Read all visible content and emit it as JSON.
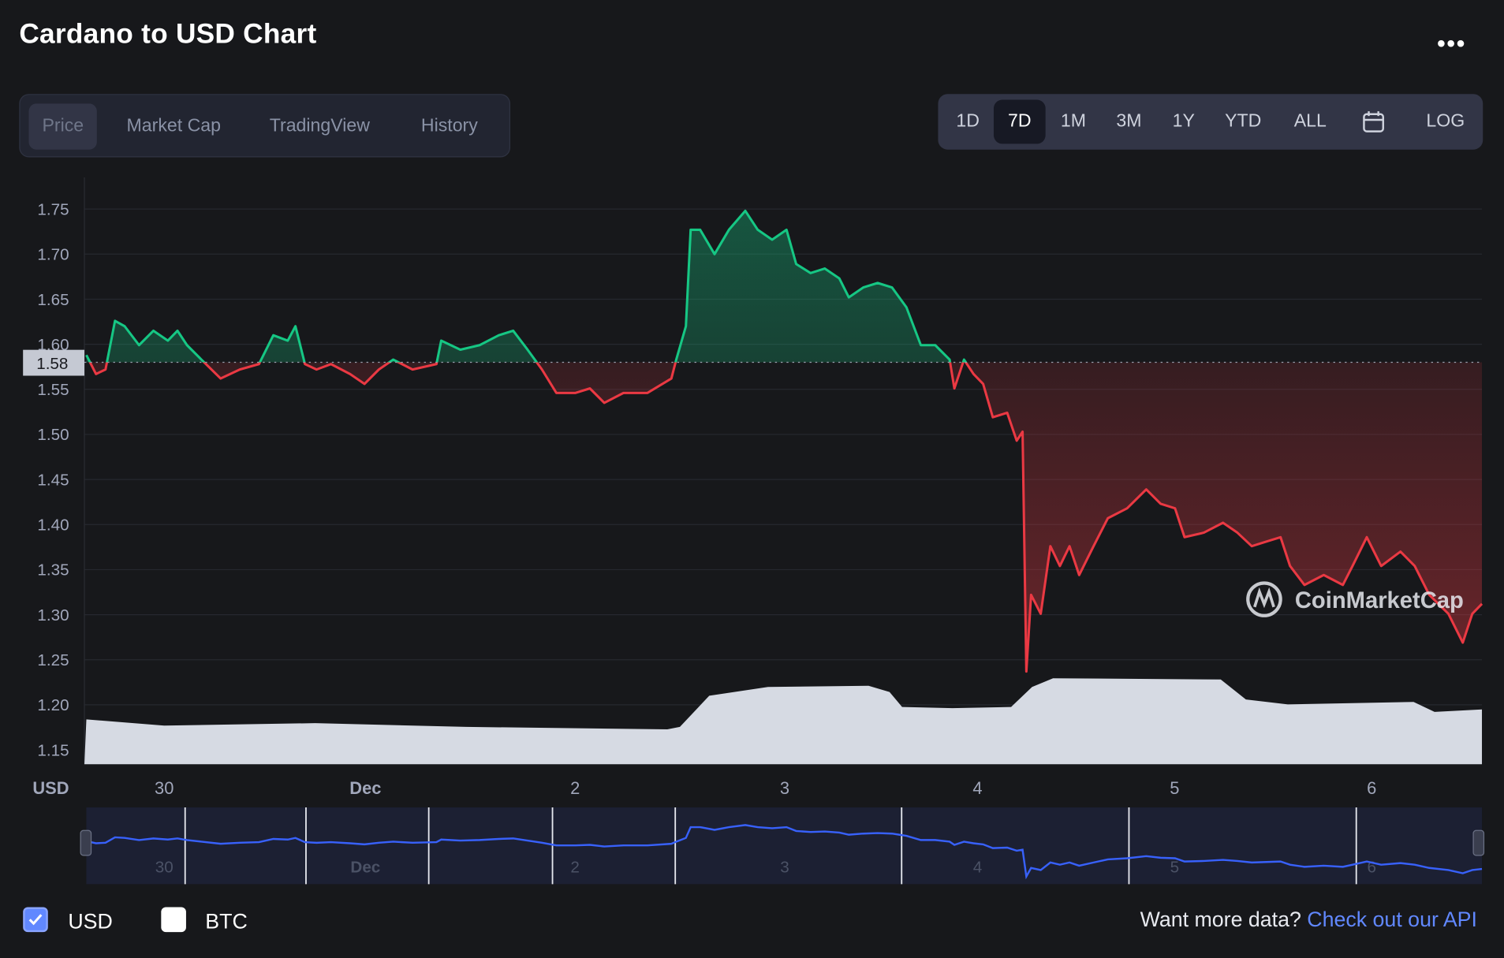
{
  "header": {
    "title": "Cardano to USD Chart",
    "more_icon": "ellipsis-icon",
    "more_label": "•••"
  },
  "tabs": [
    {
      "label": "Price",
      "active": true
    },
    {
      "label": "Market Cap",
      "active": false
    },
    {
      "label": "TradingView",
      "active": false
    },
    {
      "label": "History",
      "active": false
    }
  ],
  "ranges": [
    {
      "label": "1D",
      "active": false
    },
    {
      "label": "7D",
      "active": true
    },
    {
      "label": "1M",
      "active": false
    },
    {
      "label": "3M",
      "active": false
    },
    {
      "label": "1Y",
      "active": false
    },
    {
      "label": "YTD",
      "active": false
    },
    {
      "label": "ALL",
      "active": false
    },
    {
      "label": "",
      "icon": "calendar-icon"
    },
    {
      "label": "LOG",
      "active": false
    }
  ],
  "colors": {
    "up": "#16c784",
    "down": "#ea3943",
    "navigator_line": "#3861fb",
    "volume": "#d6dae3",
    "accent_link": "#6188ff"
  },
  "chart_data": {
    "type": "line",
    "yunit": "USD",
    "ylim": [
      1.15,
      1.75
    ],
    "yticks": [
      "1.75",
      "1.70",
      "1.65",
      "1.60",
      "1.55",
      "1.50",
      "1.45",
      "1.40",
      "1.35",
      "1.30",
      "1.25",
      "1.20",
      "1.15"
    ],
    "reference_price": "1.58",
    "xticks": [
      {
        "label": "30",
        "at": "Nov 30 00:00",
        "bold": false
      },
      {
        "label": "Dec",
        "at": "Dec 1 00:00",
        "bold": true
      },
      {
        "label": "2",
        "at": "Dec 2 01:00",
        "bold": false
      },
      {
        "label": "3",
        "at": "Dec 3 02:00",
        "bold": false
      },
      {
        "label": "4",
        "at": "Dec 4 01:00",
        "bold": false
      },
      {
        "label": "5",
        "at": "Dec 5 00:30",
        "bold": false
      },
      {
        "label": "6",
        "at": "Dec 6 00:00",
        "bold": false
      }
    ],
    "grid": true,
    "series": [
      {
        "points": [
          [
            "Nov 29 14:43",
            1.588
          ],
          [
            "Nov 29 15:52",
            1.567
          ],
          [
            "Nov 29 17:00",
            1.572
          ],
          [
            "Nov 29 18:08",
            1.626
          ],
          [
            "Nov 29 19:17",
            1.62
          ],
          [
            "Nov 29 21:00",
            1.599
          ],
          [
            "Nov 29 22:43",
            1.615
          ],
          [
            "Nov 30 00:26",
            1.604
          ],
          [
            "Nov 30 01:35",
            1.615
          ],
          [
            "Nov 30 02:43",
            1.599
          ],
          [
            "Nov 30 04:26",
            1.583
          ],
          [
            "Nov 30 06:44",
            1.562
          ],
          [
            "Nov 30 09:01",
            1.572
          ],
          [
            "Nov 30 11:18",
            1.578
          ],
          [
            "Nov 30 13:01",
            1.61
          ],
          [
            "Nov 30 14:44",
            1.604
          ],
          [
            "Nov 30 15:39",
            1.62
          ],
          [
            "Nov 30 16:47",
            1.578
          ],
          [
            "Nov 30 18:10",
            1.572
          ],
          [
            "Nov 30 19:53",
            1.578
          ],
          [
            "Nov 30 22:10",
            1.567
          ],
          [
            "Nov 30 23:53",
            1.556
          ],
          [
            "Dec 1 01:36",
            1.572
          ],
          [
            "Dec 1 03:19",
            1.583
          ],
          [
            "Dec 1 05:37",
            1.572
          ],
          [
            "Dec 1 08:28",
            1.578
          ],
          [
            "Dec 1 09:02",
            1.604
          ],
          [
            "Dec 1 11:19",
            1.594
          ],
          [
            "Dec 1 13:37",
            1.599
          ],
          [
            "Dec 1 15:54",
            1.61
          ],
          [
            "Dec 1 17:37",
            1.615
          ],
          [
            "Dec 1 19:20",
            1.594
          ],
          [
            "Dec 1 21:03",
            1.572
          ],
          [
            "Dec 1 22:46",
            1.546
          ],
          [
            "Dec 2 01:03",
            1.546
          ],
          [
            "Dec 2 02:46",
            1.551
          ],
          [
            "Dec 2 04:29",
            1.535
          ],
          [
            "Dec 2 06:46",
            1.546
          ],
          [
            "Dec 2 09:38",
            1.546
          ],
          [
            "Dec 2 12:29",
            1.562
          ],
          [
            "Dec 2 13:04",
            1.583
          ],
          [
            "Dec 2 14:13",
            1.62
          ],
          [
            "Dec 2 14:47",
            1.727
          ],
          [
            "Dec 2 15:55",
            1.727
          ],
          [
            "Dec 2 17:38",
            1.7
          ],
          [
            "Dec 2 19:21",
            1.727
          ],
          [
            "Dec 2 21:18",
            1.748
          ],
          [
            "Dec 2 22:47",
            1.727
          ],
          [
            "Dec 3 00:30",
            1.716
          ],
          [
            "Dec 3 02:13",
            1.727
          ],
          [
            "Dec 3 03:22",
            1.689
          ],
          [
            "Dec 3 05:05",
            1.679
          ],
          [
            "Dec 3 06:47",
            1.684
          ],
          [
            "Dec 3 08:31",
            1.673
          ],
          [
            "Dec 3 09:39",
            1.652
          ],
          [
            "Dec 3 11:22",
            1.663
          ],
          [
            "Dec 3 13:05",
            1.668
          ],
          [
            "Dec 3 14:48",
            1.663
          ],
          [
            "Dec 3 16:31",
            1.641
          ],
          [
            "Dec 3 18:14",
            1.599
          ],
          [
            "Dec 3 19:57",
            1.599
          ],
          [
            "Dec 3 21:40",
            1.583
          ],
          [
            "Dec 3 22:14",
            1.551
          ],
          [
            "Dec 3 23:23",
            1.583
          ],
          [
            "Dec 4 00:31",
            1.567
          ],
          [
            "Dec 4 01:40",
            1.556
          ],
          [
            "Dec 4 02:49",
            1.519
          ],
          [
            "Dec 4 04:32",
            1.524
          ],
          [
            "Dec 4 05:40",
            1.493
          ],
          [
            "Dec 4 06:22",
            1.503
          ],
          [
            "Dec 4 06:49",
            1.237
          ],
          [
            "Dec 4 07:23",
            1.322
          ],
          [
            "Dec 4 08:32",
            1.301
          ],
          [
            "Dec 4 09:41",
            1.376
          ],
          [
            "Dec 4 10:49",
            1.354
          ],
          [
            "Dec 4 11:58",
            1.376
          ],
          [
            "Dec 4 13:07",
            1.344
          ],
          [
            "Dec 4 14:50",
            1.376
          ],
          [
            "Dec 4 16:32",
            1.407
          ],
          [
            "Dec 4 18:50",
            1.418
          ],
          [
            "Dec 4 21:07",
            1.439
          ],
          [
            "Dec 4 22:50",
            1.423
          ],
          [
            "Dec 5 00:33",
            1.418
          ],
          [
            "Dec 5 01:41",
            1.386
          ],
          [
            "Dec 5 03:59",
            1.391
          ],
          [
            "Dec 5 06:16",
            1.402
          ],
          [
            "Dec 5 07:59",
            1.391
          ],
          [
            "Dec 5 09:42",
            1.376
          ],
          [
            "Dec 5 11:25",
            1.381
          ],
          [
            "Dec 5 13:08",
            1.386
          ],
          [
            "Dec 5 14:16",
            1.354
          ],
          [
            "Dec 5 15:59",
            1.333
          ],
          [
            "Dec 5 18:17",
            1.344
          ],
          [
            "Dec 5 20:34",
            1.333
          ],
          [
            "Dec 5 21:43",
            1.354
          ],
          [
            "Dec 5 23:25",
            1.386
          ],
          [
            "Dec 6 01:08",
            1.354
          ],
          [
            "Dec 6 03:26",
            1.37
          ],
          [
            "Dec 6 05:08",
            1.354
          ],
          [
            "Dec 6 06:52",
            1.322
          ],
          [
            "Dec 6 09:09",
            1.301
          ],
          [
            "Dec 6 10:52",
            1.269
          ],
          [
            "Dec 6 12:00",
            1.301
          ],
          [
            "Dec 6 13:09",
            1.312
          ]
        ]
      }
    ],
    "volume_relative": [
      [
        "Nov 29 14:43",
        0.36
      ],
      [
        "Nov 30 00:00",
        0.31
      ],
      [
        "Nov 30 18:00",
        0.33
      ],
      [
        "Dec 1 12:00",
        0.3
      ],
      [
        "Dec 2 12:00",
        0.28
      ],
      [
        "Dec 2 13:30",
        0.3
      ],
      [
        "Dec 2 17:00",
        0.55
      ],
      [
        "Dec 3 00:00",
        0.62
      ],
      [
        "Dec 3 12:00",
        0.63
      ],
      [
        "Dec 3 14:30",
        0.58
      ],
      [
        "Dec 3 16:00",
        0.46
      ],
      [
        "Dec 3 22:00",
        0.45
      ],
      [
        "Dec 4 05:00",
        0.46
      ],
      [
        "Dec 4 07:30",
        0.62
      ],
      [
        "Dec 4 10:00",
        0.69
      ],
      [
        "Dec 5 06:00",
        0.68
      ],
      [
        "Dec 5 09:00",
        0.52
      ],
      [
        "Dec 5 14:00",
        0.48
      ],
      [
        "Dec 6 05:00",
        0.5
      ],
      [
        "Dec 6 07:30",
        0.42
      ],
      [
        "Dec 6 13:09",
        0.44
      ]
    ],
    "navigator_ticks": [
      "30",
      "Dec",
      "2",
      "3",
      "4",
      "5",
      "6"
    ]
  },
  "watermark": "CoinMarketCap",
  "legend": [
    {
      "label": "USD",
      "checked": true
    },
    {
      "label": "BTC",
      "checked": false
    }
  ],
  "footer": {
    "prompt": "Want more data? ",
    "link": "Check out our API"
  }
}
